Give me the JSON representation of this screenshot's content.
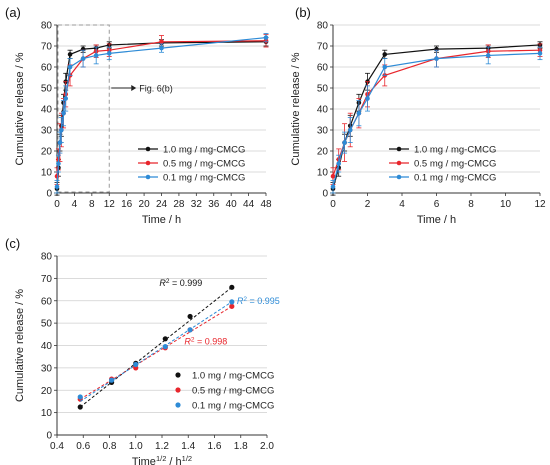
{
  "colors": {
    "black": "#111111",
    "red": "#e8262c",
    "blue": "#2e8bd6",
    "grid": "#cfcfcf",
    "dash": "#9a9a9a"
  },
  "chart_data": [
    {
      "id": "a",
      "panel_label": "(a)",
      "type": "line",
      "xlabel": "Time / h",
      "ylabel": "Cumulative release / %",
      "xlim": [
        0,
        48
      ],
      "ylim": [
        0,
        80
      ],
      "xticks": [
        "0",
        "4",
        "8",
        "12",
        "16",
        "20",
        "24",
        "28",
        "32",
        "36",
        "40",
        "44",
        "48"
      ],
      "yticks": [
        "0",
        "10",
        "20",
        "30",
        "40",
        "50",
        "60",
        "70",
        "80"
      ],
      "grid": "horizontal",
      "legend_position": "center-right",
      "annotation": "Fig. 6(b)",
      "zoom_box": {
        "x_max": 12,
        "y_max": 80
      },
      "series": [
        {
          "name": "1.0 mg / mg-CMCG",
          "color": "#111111",
          "x": [
            0,
            0.33,
            0.67,
            1,
            1.5,
            2,
            3,
            6,
            9,
            12,
            24,
            48
          ],
          "y": [
            2,
            12,
            24,
            32,
            43,
            53,
            66,
            68.5,
            69,
            70.5,
            71.5,
            72
          ],
          "err": [
            3,
            4,
            4,
            5,
            4,
            4,
            2,
            1.5,
            1.5,
            1.5,
            1.5,
            2
          ]
        },
        {
          "name": "0.5 mg / mg-CMCG",
          "color": "#e8262c",
          "x": [
            0,
            0.33,
            0.67,
            1,
            1.5,
            2,
            3,
            6,
            9,
            12,
            24,
            48
          ],
          "y": [
            8,
            16,
            24,
            30,
            38,
            47,
            56,
            64,
            67.5,
            68,
            72,
            72.5
          ],
          "err": [
            4,
            5,
            9,
            8,
            7,
            6,
            5,
            4,
            3,
            3,
            3,
            3
          ]
        },
        {
          "name": "0.1 mg / mg-CMCG",
          "color": "#2e8bd6",
          "x": [
            0,
            0.33,
            0.67,
            1,
            1.5,
            2,
            3,
            6,
            9,
            12,
            24,
            48
          ],
          "y": [
            3,
            14,
            24,
            30,
            38,
            45,
            60,
            64,
            65.5,
            66.5,
            69,
            74
          ],
          "err": [
            3,
            4,
            5,
            6,
            6,
            6,
            4,
            4,
            4,
            3,
            2,
            2
          ]
        }
      ]
    },
    {
      "id": "b",
      "panel_label": "(b)",
      "type": "line",
      "xlabel": "Time / h",
      "ylabel": "Cumulative release / %",
      "xlim": [
        0,
        12
      ],
      "ylim": [
        0,
        80
      ],
      "xticks": [
        "0",
        "2",
        "4",
        "6",
        "8",
        "10",
        "12"
      ],
      "yticks": [
        "0",
        "10",
        "20",
        "30",
        "40",
        "50",
        "60",
        "70",
        "80"
      ],
      "grid": "horizontal",
      "legend_position": "bottom-right",
      "series": [
        {
          "name": "1.0 mg / mg-CMCG",
          "color": "#111111",
          "x": [
            0,
            0.33,
            0.67,
            1,
            1.5,
            2,
            3,
            6,
            9,
            12
          ],
          "y": [
            2,
            12,
            24,
            32,
            43,
            53,
            66,
            68.5,
            69,
            70.5
          ],
          "err": [
            3,
            4,
            4,
            5,
            4,
            4,
            2,
            1.5,
            1.5,
            1.5
          ]
        },
        {
          "name": "0.5 mg / mg-CMCG",
          "color": "#e8262c",
          "x": [
            0,
            0.33,
            0.67,
            1,
            1.5,
            2,
            3,
            6,
            9,
            12
          ],
          "y": [
            8,
            16,
            24,
            30,
            38,
            47,
            56,
            64,
            67.5,
            68
          ],
          "err": [
            4,
            5,
            9,
            8,
            7,
            6,
            5,
            4,
            3,
            3
          ]
        },
        {
          "name": "0.1 mg / mg-CMCG",
          "color": "#2e8bd6",
          "x": [
            0,
            0.33,
            0.67,
            1,
            1.5,
            2,
            3,
            6,
            9,
            12
          ],
          "y": [
            3,
            14,
            24,
            30,
            38,
            45,
            60,
            64,
            65.5,
            66.5
          ],
          "err": [
            3,
            4,
            5,
            6,
            6,
            6,
            4,
            4,
            4,
            3
          ]
        }
      ]
    },
    {
      "id": "c",
      "panel_label": "(c)",
      "type": "scatter",
      "xlabel_main": "Time",
      "xlabel_sup": "1/2",
      "xlabel_mid": " / h",
      "xlabel_sup2": "1/2",
      "ylabel": "Cumulative release / %",
      "xlim": [
        0.4,
        2.0
      ],
      "ylim": [
        0,
        80
      ],
      "xticks": [
        "0.4",
        "0.6",
        "0.8",
        "1.0",
        "1.2",
        "1.4",
        "1.6",
        "1.8",
        "2.0"
      ],
      "yticks": [
        "0",
        "10",
        "20",
        "30",
        "40",
        "50",
        "60",
        "70",
        "80"
      ],
      "grid": "horizontal",
      "legend_position": "bottom-right",
      "r2_prefix": "R",
      "r2_sup": "2",
      "series": [
        {
          "name": "1.0 mg / mg-CMCG",
          "color": "#111111",
          "r2": " = 0.999",
          "x": [
            0.577,
            0.816,
            1.0,
            1.225,
            1.414,
            1.732
          ],
          "y": [
            12.5,
            23.5,
            32,
            43,
            53,
            66
          ],
          "fit": [
            [
              0.577,
              12.5
            ],
            [
              1.732,
              66
            ]
          ]
        },
        {
          "name": "0.5 mg / mg-CMCG",
          "color": "#e8262c",
          "r2": " = 0.998",
          "x": [
            0.577,
            0.816,
            1.0,
            1.225,
            1.414,
            1.732
          ],
          "y": [
            16,
            25,
            30,
            39,
            47,
            57.5
          ],
          "fit": [
            [
              0.577,
              16
            ],
            [
              1.732,
              57.5
            ]
          ]
        },
        {
          "name": "0.1 mg / mg-CMCG",
          "color": "#2e8bd6",
          "r2": " = 0.995",
          "x": [
            0.577,
            0.816,
            1.0,
            1.225,
            1.414,
            1.732
          ],
          "y": [
            17,
            24.5,
            31.5,
            39.5,
            47,
            59.5
          ],
          "fit": [
            [
              0.577,
              15
            ],
            [
              1.732,
              59.5
            ]
          ]
        }
      ]
    }
  ]
}
